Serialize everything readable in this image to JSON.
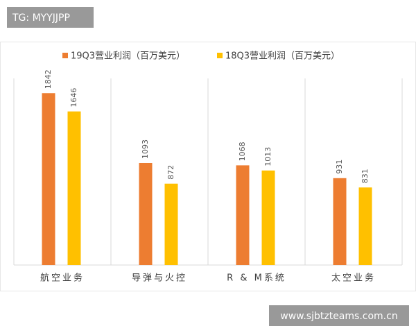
{
  "overlay": {
    "tag": "TG: MYYJJPP",
    "url": "www.sjbtzteams.com.cn"
  },
  "chart_data": {
    "type": "bar",
    "categories": [
      "航空业务",
      "导弹与火控",
      "R & M系统",
      "太空业务"
    ],
    "series": [
      {
        "name": "19Q3营业利润（百万美元）",
        "color": "#ED7D31",
        "values": [
          1842,
          1093,
          1068,
          931
        ]
      },
      {
        "name": "18Q3营业利润（百万美元）",
        "color": "#FFC000",
        "values": [
          1646,
          872,
          1013,
          831
        ]
      }
    ],
    "ylim": [
      0,
      2000
    ],
    "legend": "top"
  }
}
